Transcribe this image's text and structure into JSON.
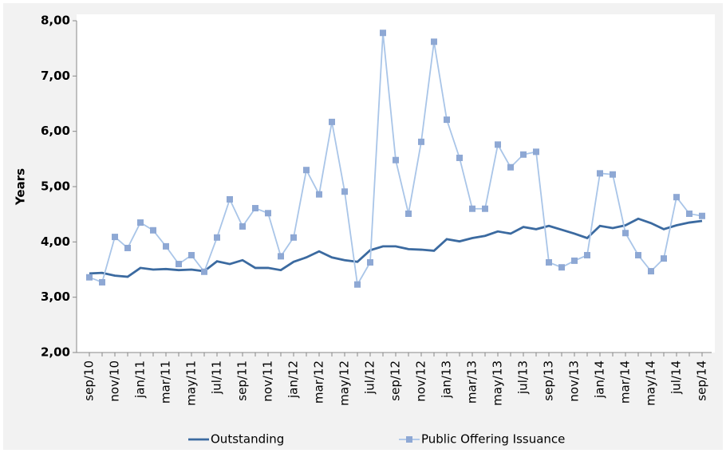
{
  "chart_data": {
    "type": "line",
    "y_label": "Years",
    "categories": [
      "sep/10",
      null,
      "nov/10",
      null,
      "jan/11",
      null,
      "mar/11",
      null,
      "may/11",
      null,
      "jul/11",
      null,
      "sep/11",
      null,
      "nov/11",
      null,
      "jan/12",
      null,
      "mar/12",
      null,
      "may/12",
      null,
      "jul/12",
      null,
      "sep/12",
      null,
      "nov/12",
      null,
      "jan/13",
      null,
      "mar/13",
      null,
      "may/13",
      null,
      "jul/13",
      null,
      "sep/13",
      null,
      "nov/13",
      null,
      "jan/14",
      null,
      "mar/14",
      null,
      "may/14",
      null,
      "jul/14",
      null,
      "sep/14"
    ],
    "series": [
      {
        "name": "Outstanding",
        "color": "#3b6aa0",
        "marker": false,
        "values": [
          3.43,
          3.44,
          3.39,
          3.37,
          3.53,
          3.5,
          3.51,
          3.49,
          3.5,
          3.47,
          3.65,
          3.6,
          3.67,
          3.53,
          3.53,
          3.49,
          3.64,
          3.72,
          3.83,
          3.72,
          3.67,
          3.64,
          3.85,
          3.92,
          3.92,
          3.87,
          3.86,
          3.84,
          4.05,
          4.01,
          4.07,
          4.11,
          4.19,
          4.15,
          4.27,
          4.23,
          4.29,
          4.22,
          4.15,
          4.07,
          4.29,
          4.25,
          4.3,
          4.42,
          4.34,
          4.23,
          4.3,
          4.35,
          4.38
        ]
      },
      {
        "name": "Public Offering Issuance",
        "color": "#a9c5e8",
        "marker": true,
        "marker_color": "#8ea8d4",
        "values": [
          3.36,
          3.27,
          4.09,
          3.89,
          4.35,
          4.21,
          3.92,
          3.6,
          3.76,
          3.46,
          4.08,
          4.77,
          4.28,
          4.61,
          4.52,
          3.74,
          4.08,
          5.3,
          4.86,
          6.17,
          4.91,
          3.23,
          3.63,
          7.78,
          5.48,
          4.51,
          5.81,
          7.62,
          6.21,
          5.52,
          4.6,
          4.6,
          5.76,
          5.35,
          5.58,
          5.63,
          3.63,
          3.54,
          3.66,
          3.76,
          5.24,
          5.22,
          4.16,
          3.76,
          3.47,
          3.7,
          4.81,
          4.51,
          4.47
        ]
      }
    ],
    "ylim": [
      2,
      8
    ],
    "yticks": [
      {
        "value": 2,
        "label": "2,00"
      },
      {
        "value": 3,
        "label": "3,00"
      },
      {
        "value": 4,
        "label": "4,00"
      },
      {
        "value": 5,
        "label": "5,00"
      },
      {
        "value": 6,
        "label": "6,00"
      },
      {
        "value": 7,
        "label": "7,00"
      },
      {
        "value": 8,
        "label": "8,00"
      }
    ],
    "grid": false
  }
}
